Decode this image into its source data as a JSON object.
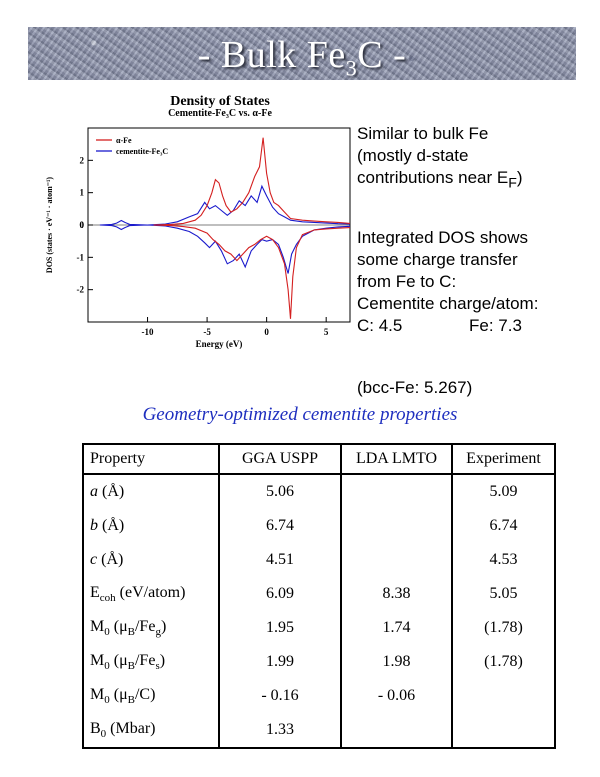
{
  "banner": {
    "title_pre": "- Bulk Fe",
    "title_sub": "3",
    "title_post": "C -"
  },
  "chart_data": {
    "type": "line",
    "title": "Density of States",
    "subtitle": "Cementite-Fe₃C vs. α-Fe",
    "xlabel": "Energy (eV)",
    "ylabel": "DOS (states · eV⁻¹ · atom⁻¹)",
    "xlim": [
      -15,
      7
    ],
    "ylim": [
      -3,
      3
    ],
    "x_ticks": [
      -10,
      -5,
      0,
      5
    ],
    "y_ticks": [
      -2,
      -1,
      0,
      1,
      2
    ],
    "legend_position": "top-left",
    "series": [
      {
        "name": "α-Fe",
        "color": "#d42020",
        "up": [
          [
            -9.5,
            0
          ],
          [
            -8,
            0.02
          ],
          [
            -7,
            0.05
          ],
          [
            -6,
            0.15
          ],
          [
            -5.5,
            0.3
          ],
          [
            -5,
            0.6
          ],
          [
            -4.6,
            1.0
          ],
          [
            -4.3,
            1.4
          ],
          [
            -4,
            1.3
          ],
          [
            -3.7,
            0.9
          ],
          [
            -3.4,
            0.6
          ],
          [
            -3,
            0.4
          ],
          [
            -2.5,
            0.5
          ],
          [
            -2,
            0.7
          ],
          [
            -1.5,
            1.0
          ],
          [
            -1,
            1.5
          ],
          [
            -0.6,
            1.8
          ],
          [
            -0.3,
            2.7
          ],
          [
            0,
            1.6
          ],
          [
            0.3,
            1.0
          ],
          [
            0.6,
            0.7
          ],
          [
            1,
            0.6
          ],
          [
            1.5,
            0.4
          ],
          [
            2,
            0.2
          ],
          [
            3,
            0.15
          ],
          [
            4,
            0.12
          ],
          [
            5,
            0.1
          ],
          [
            6,
            0.08
          ],
          [
            7,
            0.05
          ]
        ],
        "down": [
          [
            -9.5,
            0
          ],
          [
            -8,
            -0.02
          ],
          [
            -7,
            -0.05
          ],
          [
            -6,
            -0.1
          ],
          [
            -5,
            -0.25
          ],
          [
            -4.5,
            -0.45
          ],
          [
            -4,
            -0.6
          ],
          [
            -3.5,
            -0.8
          ],
          [
            -3,
            -0.9
          ],
          [
            -2.5,
            -1.1
          ],
          [
            -2,
            -0.9
          ],
          [
            -1.5,
            -0.7
          ],
          [
            -1,
            -0.6
          ],
          [
            -0.5,
            -0.45
          ],
          [
            0,
            -0.35
          ],
          [
            0.5,
            -0.45
          ],
          [
            1,
            -0.7
          ],
          [
            1.5,
            -1.2
          ],
          [
            1.8,
            -2.0
          ],
          [
            2,
            -2.9
          ],
          [
            2.2,
            -1.6
          ],
          [
            2.5,
            -0.7
          ],
          [
            3,
            -0.3
          ],
          [
            4,
            -0.15
          ],
          [
            5,
            -0.12
          ],
          [
            6,
            -0.1
          ],
          [
            7,
            -0.08
          ]
        ]
      },
      {
        "name": "cementite-Fe₃C",
        "color": "#1a1acc",
        "up": [
          [
            -14,
            0
          ],
          [
            -13,
            0.02
          ],
          [
            -12.6,
            0.06
          ],
          [
            -12.2,
            0.14
          ],
          [
            -11.9,
            0.08
          ],
          [
            -11.5,
            0.02
          ],
          [
            -10,
            0
          ],
          [
            -8.5,
            0.03
          ],
          [
            -7.5,
            0.1
          ],
          [
            -6.5,
            0.25
          ],
          [
            -5.8,
            0.35
          ],
          [
            -5.2,
            0.7
          ],
          [
            -4.8,
            0.5
          ],
          [
            -4.3,
            0.6
          ],
          [
            -3.8,
            0.45
          ],
          [
            -3.3,
            0.3
          ],
          [
            -2.8,
            0.45
          ],
          [
            -2.3,
            0.75
          ],
          [
            -1.8,
            0.6
          ],
          [
            -1.3,
            0.9
          ],
          [
            -0.8,
            0.7
          ],
          [
            -0.4,
            1.2
          ],
          [
            0,
            0.9
          ],
          [
            0.5,
            0.55
          ],
          [
            1,
            0.35
          ],
          [
            1.5,
            0.25
          ],
          [
            2,
            0.15
          ],
          [
            3,
            0.1
          ],
          [
            4,
            0.08
          ],
          [
            5,
            0.06
          ],
          [
            6,
            0.04
          ],
          [
            7,
            0.03
          ]
        ],
        "down": [
          [
            -14,
            0
          ],
          [
            -13,
            -0.02
          ],
          [
            -12.6,
            -0.06
          ],
          [
            -12.2,
            -0.14
          ],
          [
            -11.9,
            -0.08
          ],
          [
            -11.5,
            -0.02
          ],
          [
            -10,
            0
          ],
          [
            -8.5,
            -0.03
          ],
          [
            -7.5,
            -0.1
          ],
          [
            -6.5,
            -0.2
          ],
          [
            -5.8,
            -0.35
          ],
          [
            -5.2,
            -0.55
          ],
          [
            -4.8,
            -0.7
          ],
          [
            -4.3,
            -0.5
          ],
          [
            -3.8,
            -0.8
          ],
          [
            -3.3,
            -1.2
          ],
          [
            -2.8,
            -1.1
          ],
          [
            -2.3,
            -0.9
          ],
          [
            -1.8,
            -1.3
          ],
          [
            -1.3,
            -0.8
          ],
          [
            -0.8,
            -0.6
          ],
          [
            -0.4,
            -0.45
          ],
          [
            0,
            -0.5
          ],
          [
            0.5,
            -0.45
          ],
          [
            1,
            -0.6
          ],
          [
            1.4,
            -1.0
          ],
          [
            1.8,
            -1.5
          ],
          [
            2.1,
            -0.9
          ],
          [
            2.5,
            -0.6
          ],
          [
            3,
            -0.35
          ],
          [
            4,
            -0.15
          ],
          [
            5,
            -0.1
          ],
          [
            6,
            -0.06
          ],
          [
            7,
            -0.04
          ]
        ]
      }
    ]
  },
  "right_text": {
    "p1_l1": "Similar to bulk Fe",
    "p1_l2": "(mostly d-state",
    "p1_l3": "contributions near E",
    "p1_l3_sub": "F",
    "p1_l3_post": ")",
    "p2_l1": "Integrated DOS shows",
    "p2_l2": "some charge transfer",
    "p2_l3": "from Fe to C:",
    "p2_l4": "Cementite charge/atom:",
    "p2_l5_c": "C: 4.5",
    "p2_l5_fe": "Fe: 7.3",
    "p3": "(bcc-Fe: 5.267)"
  },
  "caption": "Geometry-optimized cementite properties",
  "table": {
    "headers": [
      "Property",
      "GGA USPP",
      "LDA LMTO",
      "Experiment"
    ],
    "rows": [
      {
        "label": "a",
        "label_post": " (Å)",
        "v": [
          "5.06",
          "",
          "5.09"
        ]
      },
      {
        "label": "b",
        "label_post": " (Å)",
        "v": [
          "6.74",
          "",
          "6.74"
        ]
      },
      {
        "label": "c",
        "label_post": " (Å)",
        "v": [
          "4.51",
          "",
          "4.53"
        ]
      },
      {
        "label": "E",
        "label_sub": "coh",
        "label_post": " (eV/atom)",
        "v": [
          "6.09",
          "8.38",
          "5.05"
        ]
      },
      {
        "label": "M",
        "label_sub": "0",
        "label_post": " (μ",
        "label_sub2": "B",
        "label_post2": "/Fe",
        "label_sub3": "g",
        "label_post3": ")",
        "v": [
          "1.95",
          "1.74",
          "(1.78)"
        ]
      },
      {
        "label": "M",
        "label_sub": "0",
        "label_post": " (μ",
        "label_sub2": "B",
        "label_post2": "/Fe",
        "label_sub3": "s",
        "label_post3": ")",
        "v": [
          "1.99",
          "1.98",
          "(1.78)"
        ]
      },
      {
        "label": "M",
        "label_sub": "0",
        "label_post": " (μ",
        "label_sub2": "B",
        "label_post2": "/C)",
        "v": [
          "- 0.16",
          "- 0.06",
          ""
        ]
      },
      {
        "label": "B",
        "label_sub": "0",
        "label_post": " (Mbar)",
        "v": [
          "1.33",
          "",
          ""
        ]
      }
    ]
  }
}
